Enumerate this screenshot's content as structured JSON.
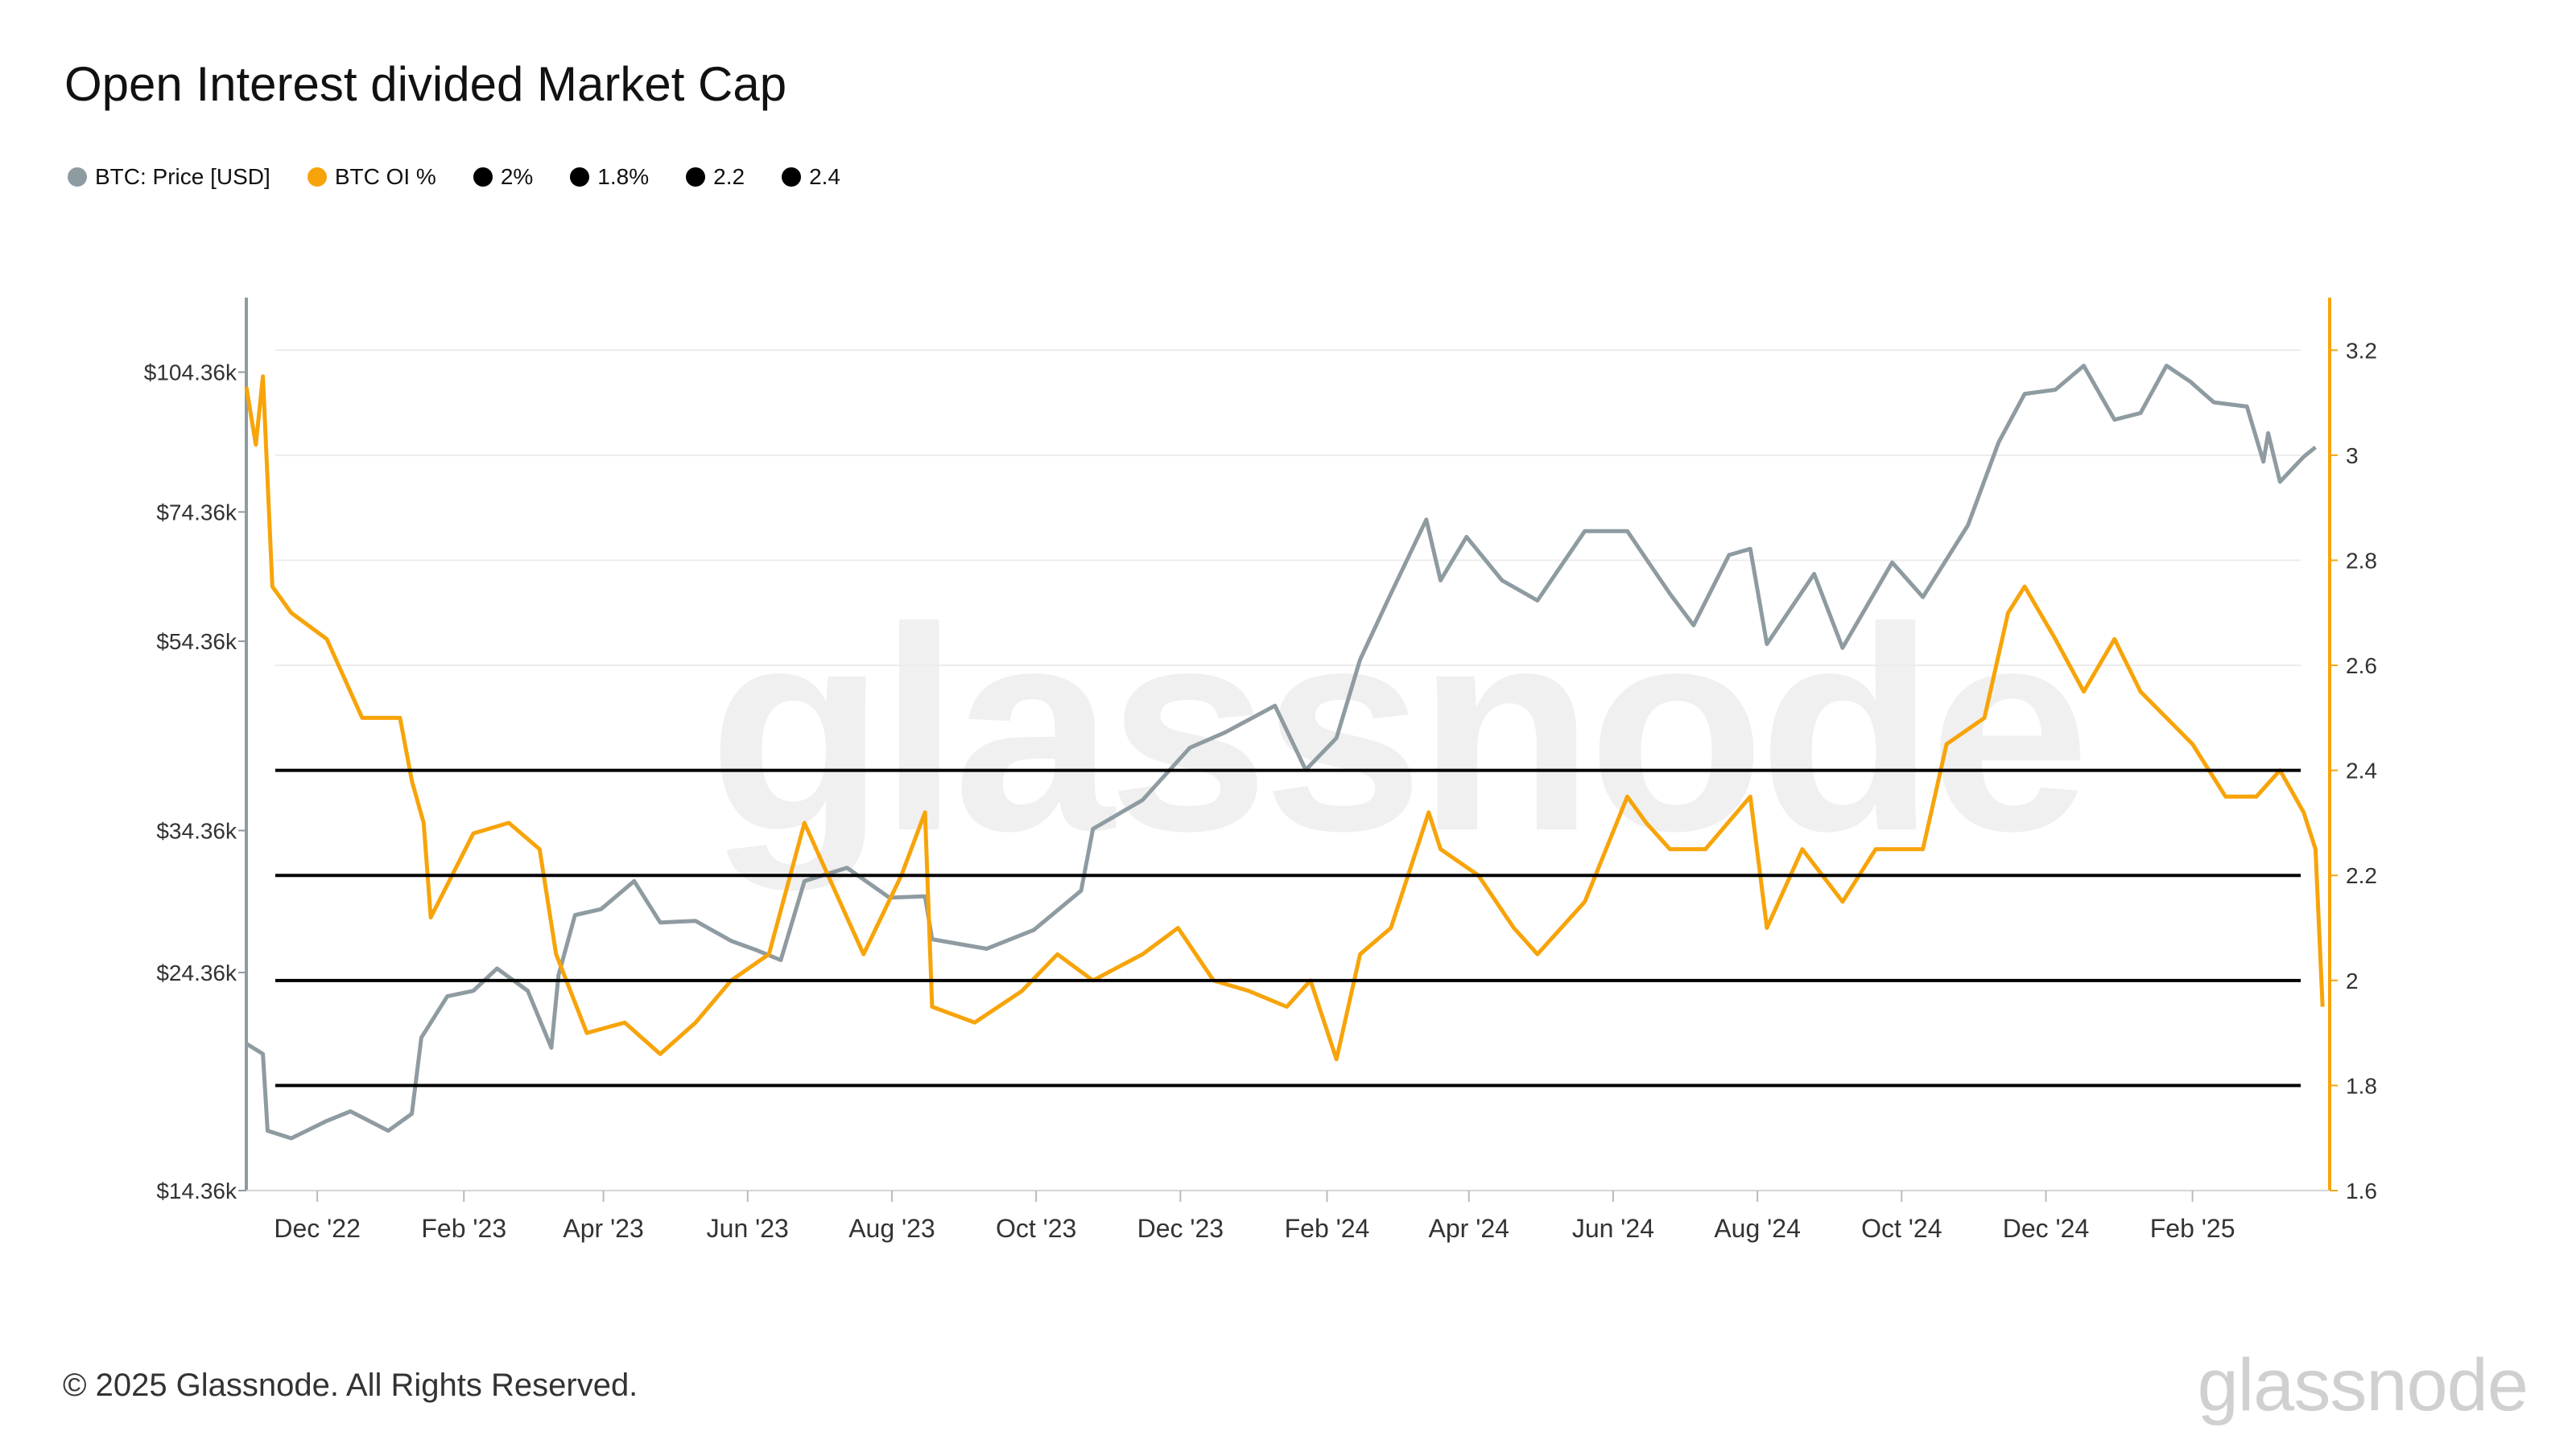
{
  "title": "Open Interest divided Market Cap",
  "footer": "© 2025 Glassnode. All Rights Reserved.",
  "brand": "glassnode",
  "watermark": "glassnode",
  "colors": {
    "price": "#8e9ba1",
    "oi": "#f7a40a",
    "ref": "#000000",
    "axis_right": "#f7a40a",
    "axis_left": "#8e9ba1",
    "grid": "#ececec"
  },
  "legend": [
    {
      "label": "BTC: Price [USD]",
      "color": "#8e9ba1"
    },
    {
      "label": "BTC OI %",
      "color": "#f7a40a"
    },
    {
      "label": "2%",
      "color": "#000000"
    },
    {
      "label": "1.8%",
      "color": "#000000"
    },
    {
      "label": "2.2",
      "color": "#000000"
    },
    {
      "label": "2.4",
      "color": "#000000"
    }
  ],
  "chart_data": {
    "type": "line",
    "title": "Open Interest divided Market Cap",
    "x_ticks": [
      "Dec '22",
      "Feb '23",
      "Apr '23",
      "Jun '23",
      "Aug '23",
      "Oct '23",
      "Dec '23",
      "Feb '24",
      "Apr '24",
      "Jun '24",
      "Aug '24",
      "Oct '24",
      "Dec '24",
      "Feb '25"
    ],
    "x_range": [
      "2022-11-01",
      "2025-03-31"
    ],
    "y_left": {
      "scale": "log",
      "ticks": [
        "$14.36k",
        "$24.36k",
        "$34.36k",
        "$54.36k",
        "$74.36k",
        "$104.36k"
      ],
      "tick_values": [
        14360,
        24360,
        34360,
        54360,
        74360,
        104360
      ],
      "range": [
        14360,
        125000
      ]
    },
    "y_right": {
      "ticks": [
        "1.6",
        "1.8",
        "2",
        "2.2",
        "2.4",
        "2.6",
        "2.8",
        "3",
        "3.2"
      ],
      "tick_values": [
        1.6,
        1.8,
        2.0,
        2.2,
        2.4,
        2.6,
        2.8,
        3.0,
        3.2
      ],
      "range": [
        1.6,
        3.3
      ]
    },
    "reference_lines": [
      {
        "name": "2%",
        "value": 2.0
      },
      {
        "name": "1.8%",
        "value": 1.8
      },
      {
        "name": "2.2",
        "value": 2.2
      },
      {
        "name": "2.4",
        "value": 2.4
      }
    ],
    "series": [
      {
        "name": "BTC: Price [USD]",
        "axis": "left",
        "points": [
          [
            "2022-11-01",
            20500
          ],
          [
            "2022-11-08",
            20000
          ],
          [
            "2022-11-10",
            16600
          ],
          [
            "2022-11-20",
            16300
          ],
          [
            "2022-12-05",
            17000
          ],
          [
            "2022-12-15",
            17400
          ],
          [
            "2022-12-31",
            16600
          ],
          [
            "2023-01-10",
            17300
          ],
          [
            "2023-01-14",
            20800
          ],
          [
            "2023-01-25",
            23000
          ],
          [
            "2023-02-05",
            23300
          ],
          [
            "2023-02-15",
            24600
          ],
          [
            "2023-02-28",
            23300
          ],
          [
            "2023-03-10",
            20300
          ],
          [
            "2023-03-13",
            24200
          ],
          [
            "2023-03-20",
            28000
          ],
          [
            "2023-03-31",
            28400
          ],
          [
            "2023-04-14",
            30400
          ],
          [
            "2023-04-25",
            27500
          ],
          [
            "2023-05-10",
            27600
          ],
          [
            "2023-05-25",
            26300
          ],
          [
            "2023-06-05",
            25700
          ],
          [
            "2023-06-15",
            25100
          ],
          [
            "2023-06-25",
            30400
          ],
          [
            "2023-07-13",
            31400
          ],
          [
            "2023-07-31",
            29200
          ],
          [
            "2023-08-15",
            29300
          ],
          [
            "2023-08-18",
            26400
          ],
          [
            "2023-09-10",
            25800
          ],
          [
            "2023-09-30",
            27000
          ],
          [
            "2023-10-20",
            29700
          ],
          [
            "2023-10-25",
            34500
          ],
          [
            "2023-11-15",
            37000
          ],
          [
            "2023-12-05",
            42000
          ],
          [
            "2023-12-20",
            43600
          ],
          [
            "2024-01-10",
            46500
          ],
          [
            "2024-01-23",
            39800
          ],
          [
            "2024-02-05",
            43000
          ],
          [
            "2024-02-15",
            52000
          ],
          [
            "2024-02-28",
            61000
          ],
          [
            "2024-03-14",
            73000
          ],
          [
            "2024-03-20",
            63000
          ],
          [
            "2024-03-31",
            70000
          ],
          [
            "2024-04-15",
            63000
          ],
          [
            "2024-04-30",
            60000
          ],
          [
            "2024-05-20",
            71000
          ],
          [
            "2024-06-07",
            71000
          ],
          [
            "2024-06-25",
            61000
          ],
          [
            "2024-07-05",
            56500
          ],
          [
            "2024-07-20",
            67000
          ],
          [
            "2024-07-29",
            68000
          ],
          [
            "2024-08-05",
            54000
          ],
          [
            "2024-08-25",
            64000
          ],
          [
            "2024-09-06",
            53500
          ],
          [
            "2024-09-27",
            65800
          ],
          [
            "2024-10-10",
            60500
          ],
          [
            "2024-10-29",
            72000
          ],
          [
            "2024-11-11",
            88000
          ],
          [
            "2024-11-22",
            99000
          ],
          [
            "2024-12-05",
            100000
          ],
          [
            "2024-12-17",
            106000
          ],
          [
            "2024-12-30",
            93000
          ],
          [
            "2025-01-10",
            94500
          ],
          [
            "2025-01-21",
            106000
          ],
          [
            "2025-01-31",
            102000
          ],
          [
            "2025-02-10",
            97000
          ],
          [
            "2025-02-24",
            96000
          ],
          [
            "2025-03-03",
            84000
          ],
          [
            "2025-03-05",
            90000
          ],
          [
            "2025-03-10",
            80000
          ],
          [
            "2025-03-20",
            85000
          ],
          [
            "2025-03-25",
            87000
          ]
        ]
      },
      {
        "name": "BTC OI %",
        "axis": "right",
        "points": [
          [
            "2022-11-01",
            3.13
          ],
          [
            "2022-11-05",
            3.02
          ],
          [
            "2022-11-08",
            3.15
          ],
          [
            "2022-11-12",
            2.75
          ],
          [
            "2022-11-20",
            2.7
          ],
          [
            "2022-12-05",
            2.65
          ],
          [
            "2022-12-20",
            2.5
          ],
          [
            "2023-01-05",
            2.5
          ],
          [
            "2023-01-10",
            2.38
          ],
          [
            "2023-01-15",
            2.3
          ],
          [
            "2023-01-18",
            2.12
          ],
          [
            "2023-02-05",
            2.28
          ],
          [
            "2023-02-20",
            2.3
          ],
          [
            "2023-03-05",
            2.25
          ],
          [
            "2023-03-12",
            2.05
          ],
          [
            "2023-03-25",
            1.9
          ],
          [
            "2023-04-10",
            1.92
          ],
          [
            "2023-04-25",
            1.86
          ],
          [
            "2023-05-10",
            1.92
          ],
          [
            "2023-05-25",
            2.0
          ],
          [
            "2023-06-10",
            2.05
          ],
          [
            "2023-06-25",
            2.3
          ],
          [
            "2023-07-05",
            2.2
          ],
          [
            "2023-07-20",
            2.05
          ],
          [
            "2023-08-05",
            2.2
          ],
          [
            "2023-08-15",
            2.32
          ],
          [
            "2023-08-18",
            1.95
          ],
          [
            "2023-09-05",
            1.92
          ],
          [
            "2023-09-25",
            1.98
          ],
          [
            "2023-10-10",
            2.05
          ],
          [
            "2023-10-25",
            2.0
          ],
          [
            "2023-11-15",
            2.05
          ],
          [
            "2023-11-30",
            2.1
          ],
          [
            "2023-12-15",
            2.0
          ],
          [
            "2023-12-30",
            1.98
          ],
          [
            "2024-01-15",
            1.95
          ],
          [
            "2024-01-25",
            2.0
          ],
          [
            "2024-02-05",
            1.85
          ],
          [
            "2024-02-15",
            2.05
          ],
          [
            "2024-02-28",
            2.1
          ],
          [
            "2024-03-15",
            2.32
          ],
          [
            "2024-03-20",
            2.25
          ],
          [
            "2024-04-05",
            2.2
          ],
          [
            "2024-04-20",
            2.1
          ],
          [
            "2024-04-30",
            2.05
          ],
          [
            "2024-05-20",
            2.15
          ],
          [
            "2024-06-07",
            2.35
          ],
          [
            "2024-06-15",
            2.3
          ],
          [
            "2024-06-25",
            2.25
          ],
          [
            "2024-07-10",
            2.25
          ],
          [
            "2024-07-29",
            2.35
          ],
          [
            "2024-08-05",
            2.1
          ],
          [
            "2024-08-20",
            2.25
          ],
          [
            "2024-09-06",
            2.15
          ],
          [
            "2024-09-20",
            2.25
          ],
          [
            "2024-10-10",
            2.25
          ],
          [
            "2024-10-20",
            2.45
          ],
          [
            "2024-11-05",
            2.5
          ],
          [
            "2024-11-15",
            2.7
          ],
          [
            "2024-11-22",
            2.75
          ],
          [
            "2024-12-05",
            2.65
          ],
          [
            "2024-12-17",
            2.55
          ],
          [
            "2024-12-30",
            2.65
          ],
          [
            "2025-01-10",
            2.55
          ],
          [
            "2025-01-21",
            2.5
          ],
          [
            "2025-02-01",
            2.45
          ],
          [
            "2025-02-15",
            2.35
          ],
          [
            "2025-02-28",
            2.35
          ],
          [
            "2025-03-10",
            2.4
          ],
          [
            "2025-03-20",
            2.32
          ],
          [
            "2025-03-25",
            2.25
          ],
          [
            "2025-03-28",
            1.95
          ]
        ]
      }
    ]
  }
}
